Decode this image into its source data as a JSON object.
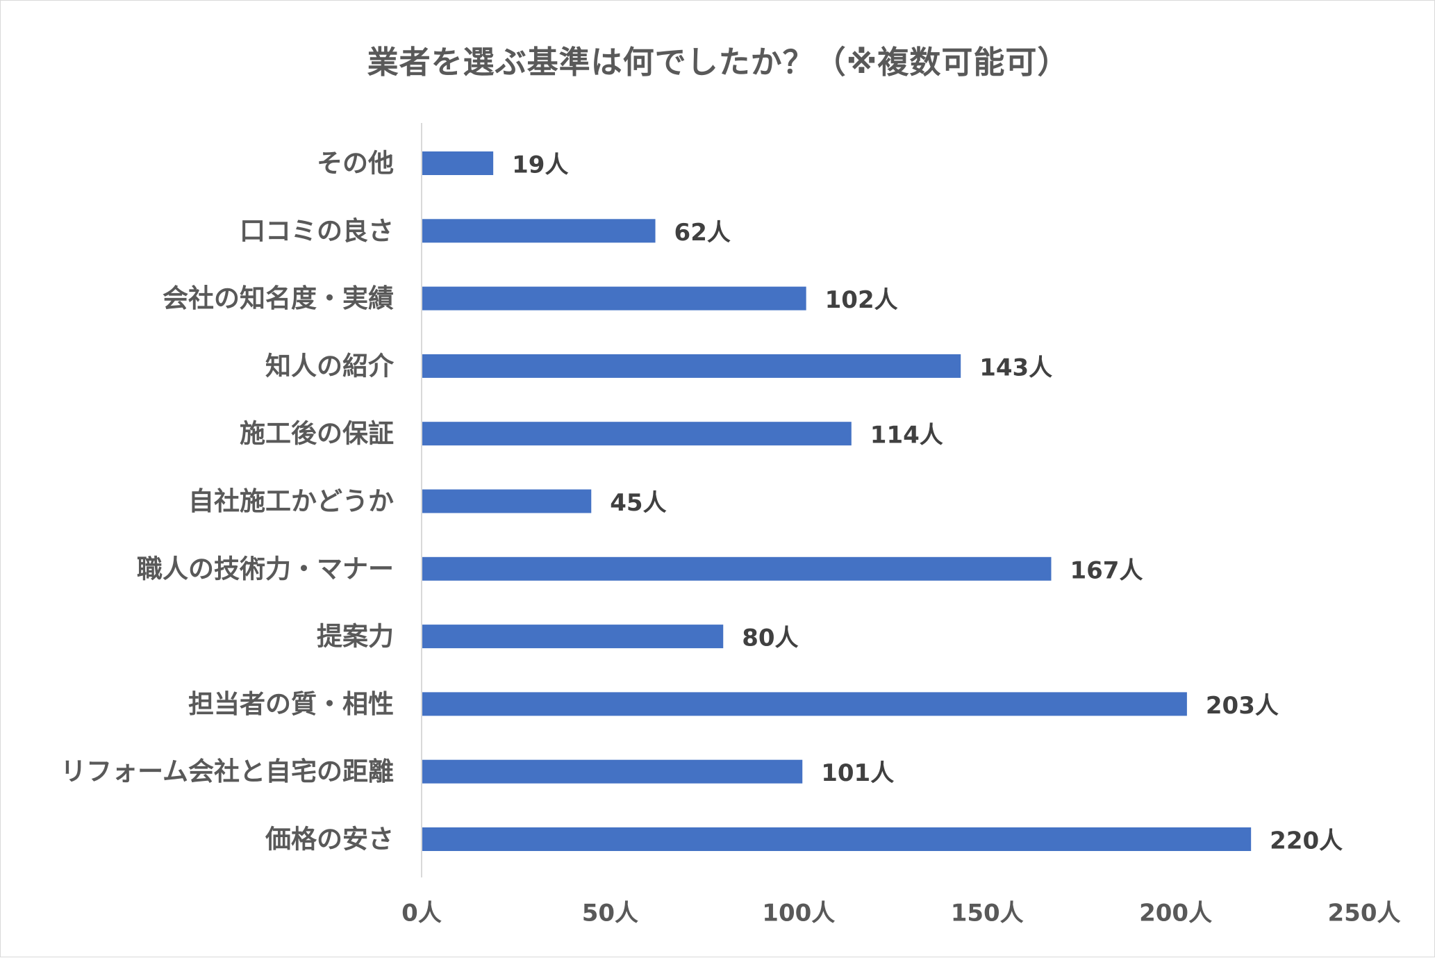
{
  "chart_data": {
    "type": "bar",
    "orientation": "horizontal",
    "title": "業者を選ぶ基準は何でしたか？（※複数可能可）",
    "xlabel": "",
    "ylabel": "",
    "unit": "人",
    "xlim": [
      0,
      250
    ],
    "ticks": [
      0,
      50,
      100,
      150,
      200,
      250
    ],
    "tick_labels": [
      "0人",
      "50人",
      "100人",
      "150人",
      "200人",
      "250人"
    ],
    "grid": false,
    "legend": "none",
    "bar_color": "#4472C4",
    "categories": [
      "その他",
      "口コミの良さ",
      "会社の知名度・実績",
      "知人の紹介",
      "施工後の保証",
      "自社施工かどうか",
      "職人の技術力・マナー",
      "提案力",
      "担当者の質・相性",
      "リフォーム会社と自宅の距離",
      "価格の安さ"
    ],
    "values": [
      19,
      62,
      102,
      143,
      114,
      45,
      167,
      80,
      203,
      101,
      220
    ],
    "data_labels": [
      "19人",
      "62人",
      "102人",
      "143人",
      "114人",
      "45人",
      "167人",
      "80人",
      "203人",
      "101人",
      "220人"
    ]
  }
}
